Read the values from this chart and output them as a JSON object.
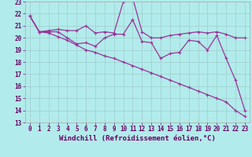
{
  "xlabel": "Windchill (Refroidissement éolien,°C)",
  "bg_color": "#b2ebeb",
  "grid_color": "#9ecece",
  "line_color": "#993399",
  "xlim": [
    -0.5,
    23.5
  ],
  "ylim": [
    13,
    23
  ],
  "xticks": [
    0,
    1,
    2,
    3,
    4,
    5,
    6,
    7,
    8,
    9,
    10,
    11,
    12,
    13,
    14,
    15,
    16,
    17,
    18,
    19,
    20,
    21,
    22,
    23
  ],
  "yticks": [
    13,
    14,
    15,
    16,
    17,
    18,
    19,
    20,
    21,
    22,
    23
  ],
  "line1_x": [
    0,
    1,
    2,
    3,
    4,
    5,
    6,
    7,
    8,
    9,
    10,
    11,
    12,
    13,
    14,
    15,
    16,
    17,
    18,
    19,
    20,
    21,
    22,
    23
  ],
  "line1_y": [
    21.8,
    20.5,
    20.6,
    20.7,
    20.6,
    20.6,
    21.0,
    20.4,
    20.5,
    20.4,
    23.0,
    23.3,
    20.5,
    20.0,
    20.0,
    20.2,
    20.3,
    20.4,
    20.5,
    20.4,
    20.5,
    20.3,
    20.0,
    20.0
  ],
  "line2_x": [
    0,
    1,
    2,
    3,
    4,
    5,
    6,
    7,
    8,
    9,
    10,
    11,
    12,
    13,
    14,
    15,
    16,
    17,
    18,
    19,
    20,
    21,
    22,
    23
  ],
  "line2_y": [
    21.8,
    20.5,
    20.5,
    20.5,
    20.0,
    19.5,
    19.6,
    19.3,
    20.0,
    20.3,
    20.3,
    21.5,
    19.7,
    19.6,
    18.3,
    18.7,
    18.8,
    19.8,
    19.7,
    19.0,
    20.2,
    18.3,
    16.5,
    14.0
  ],
  "line3_x": [
    0,
    1,
    2,
    3,
    4,
    5,
    6,
    7,
    8,
    9,
    10,
    11,
    12,
    13,
    14,
    15,
    16,
    17,
    18,
    19,
    20,
    21,
    22,
    23
  ],
  "line3_y": [
    21.8,
    20.5,
    20.4,
    20.1,
    19.8,
    19.4,
    19.0,
    18.8,
    18.5,
    18.3,
    18.0,
    17.7,
    17.4,
    17.1,
    16.8,
    16.5,
    16.2,
    15.9,
    15.6,
    15.3,
    15.0,
    14.7,
    14.0,
    13.5
  ],
  "marker": "+",
  "markersize": 3,
  "markeredgewidth": 0.8,
  "linewidth": 0.9,
  "tick_fontsize": 5.5,
  "xlabel_fontsize": 6.5
}
